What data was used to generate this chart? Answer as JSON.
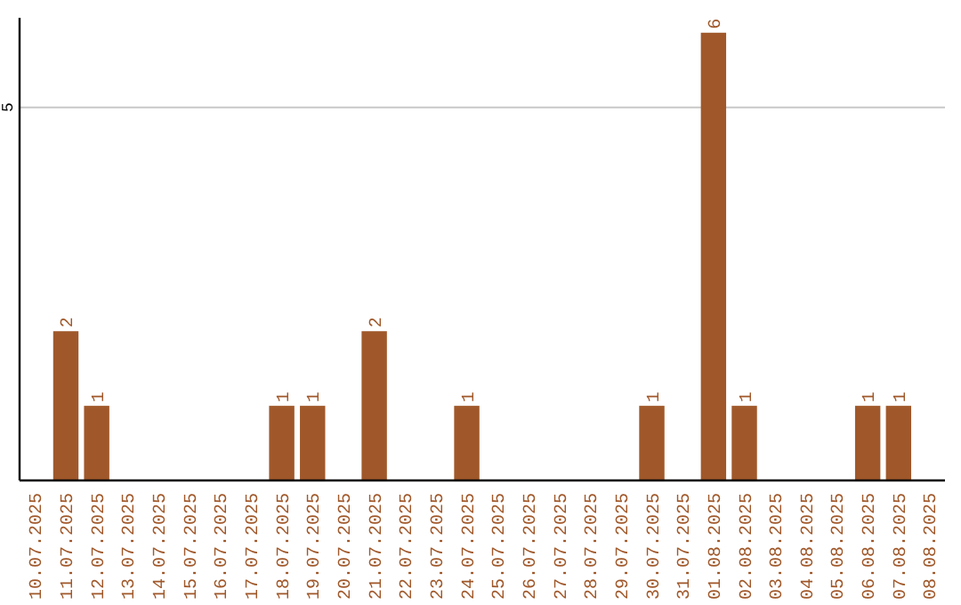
{
  "chart_data": {
    "type": "bar",
    "categories": [
      "10.07.2025",
      "11.07.2025",
      "12.07.2025",
      "13.07.2025",
      "14.07.2025",
      "15.07.2025",
      "16.07.2025",
      "17.07.2025",
      "18.07.2025",
      "19.07.2025",
      "20.07.2025",
      "21.07.2025",
      "22.07.2025",
      "23.07.2025",
      "24.07.2025",
      "25.07.2025",
      "26.07.2025",
      "27.07.2025",
      "28.07.2025",
      "29.07.2025",
      "30.07.2025",
      "31.07.2025",
      "01.08.2025",
      "02.08.2025",
      "03.08.2025",
      "04.08.2025",
      "05.08.2025",
      "06.08.2025",
      "07.08.2025",
      "08.08.2025"
    ],
    "values": [
      0,
      2,
      1,
      0,
      0,
      0,
      0,
      0,
      1,
      1,
      0,
      2,
      0,
      0,
      1,
      0,
      0,
      0,
      0,
      0,
      1,
      0,
      6,
      1,
      0,
      0,
      0,
      1,
      1,
      0
    ],
    "value_labels": [
      null,
      "2",
      "1",
      null,
      null,
      null,
      null,
      null,
      "1",
      "1",
      null,
      "2",
      null,
      null,
      "1",
      null,
      null,
      null,
      null,
      null,
      "1",
      null,
      "6",
      "1",
      null,
      null,
      null,
      "1",
      "1",
      null
    ],
    "color": "#a0582a",
    "ylim": [
      0,
      6.2
    ],
    "yticks": [
      5
    ],
    "grid": "y"
  }
}
